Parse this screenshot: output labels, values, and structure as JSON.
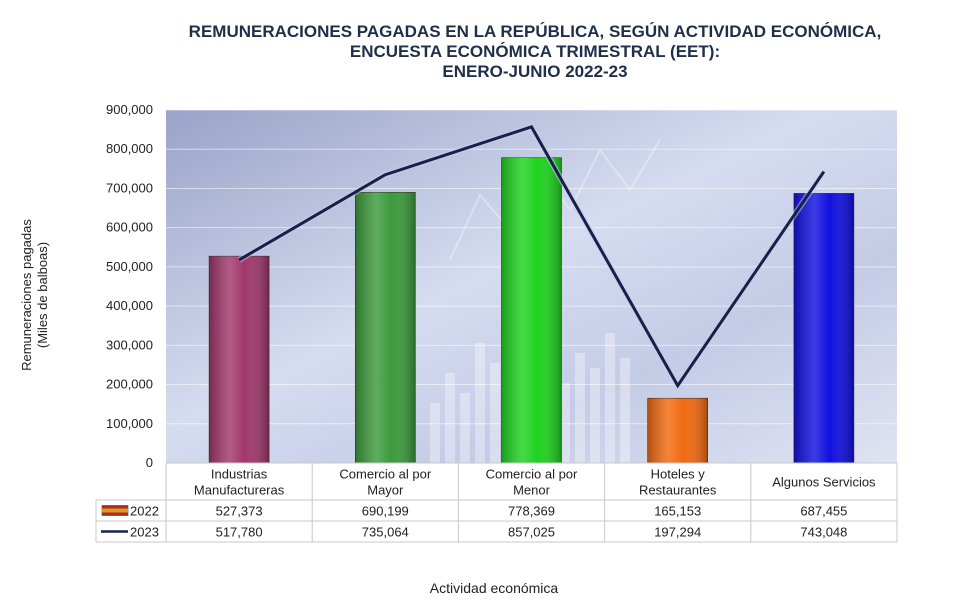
{
  "chart_data": {
    "type": "bar",
    "title_lines": [
      "REMUNERACIONES PAGADAS EN LA REPÚBLICA, SEGÚN ACTIVIDAD ECONÓMICA,",
      "ENCUESTA ECONÓMICA TRIMESTRAL (EET):",
      "ENERO-JUNIO 2022-23"
    ],
    "ylabel_lines": [
      "Remuneraciones pagadas",
      "(Miles de balboas)"
    ],
    "xlabel": "Actividad económica",
    "ylim": [
      0,
      900000
    ],
    "yticks": [
      0,
      100000,
      200000,
      300000,
      400000,
      500000,
      600000,
      700000,
      800000,
      900000
    ],
    "ytick_labels": [
      "0",
      "100,000",
      "200,000",
      "300,000",
      "400,000",
      "500,000",
      "600,000",
      "700,000",
      "800,000",
      "900,000"
    ],
    "categories": [
      [
        "Industrias",
        "Manufactureras"
      ],
      [
        "Comercio al por",
        "Mayor"
      ],
      [
        "Comercio al por",
        "Menor"
      ],
      [
        "Hoteles y",
        "Restaurantes"
      ],
      [
        "Algunos Servicios"
      ]
    ],
    "series": [
      {
        "name": "2022",
        "kind": "bar",
        "values": [
          527373,
          690199,
          778369,
          165153,
          687455
        ],
        "labels": [
          "527,373",
          "690,199",
          "778,369",
          "165,153",
          "687,455"
        ],
        "colors": [
          "#a0376a",
          "#3c9a3c",
          "#1fd11f",
          "#f06a10",
          "#1010e0"
        ]
      },
      {
        "name": "2023",
        "kind": "line",
        "values": [
          517780,
          735064,
          857025,
          197294,
          743048
        ],
        "labels": [
          "517,780",
          "735,064",
          "857,025",
          "197,294",
          "743,048"
        ],
        "color": "#16204a"
      }
    ]
  }
}
